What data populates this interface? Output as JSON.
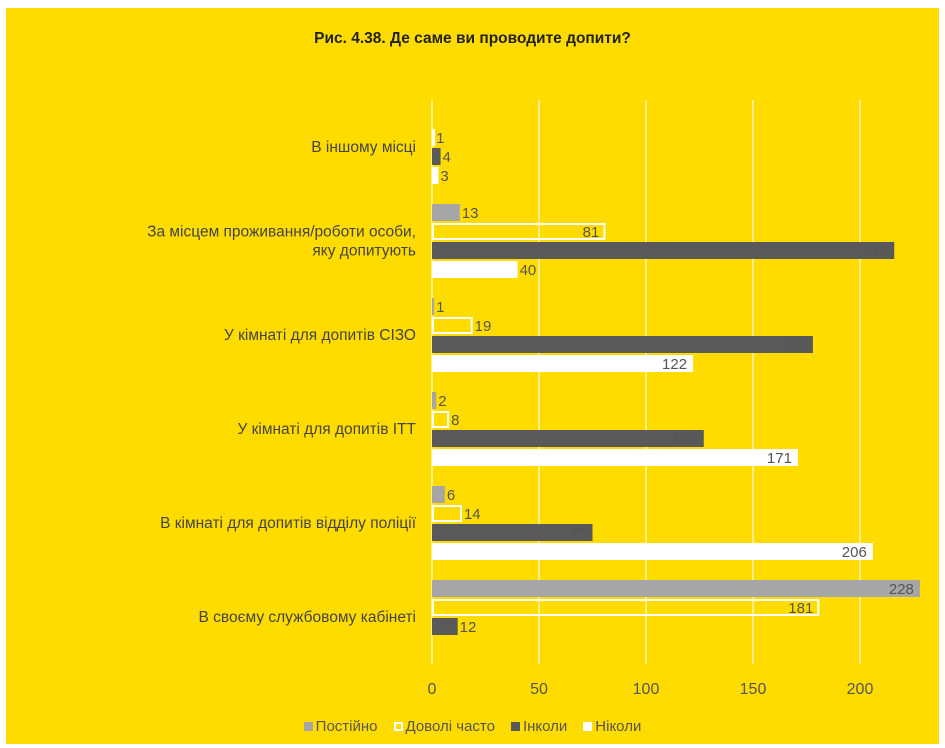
{
  "chart_data": {
    "type": "bar",
    "orientation": "horizontal",
    "title": "Рис. 4.38. Де саме ви проводите допити?",
    "categories": [
      "В своєму службовому кабінеті",
      "В кімнаті для допитів відділу поліції",
      "У кімнаті для допитів ІТТ",
      "У кімнаті для допитів СІЗО",
      "За місцем проживання/роботи особи, яку допитують",
      "В іншому місці"
    ],
    "category_lines": [
      [
        "В своєму службовому кабінеті"
      ],
      [
        "В кімнаті для допитів відділу поліції"
      ],
      [
        "У кімнаті для допитів ІТТ"
      ],
      [
        "У кімнаті для допитів СІЗО"
      ],
      [
        "За місцем проживання/роботи особи,",
        "яку допитують"
      ],
      [
        "В іншому місці"
      ]
    ],
    "series": [
      {
        "name": "Постійно",
        "color": "#A6A6A6",
        "style": "fill",
        "values": [
          228,
          6,
          2,
          1,
          13,
          0
        ]
      },
      {
        "name": "Доволі часто",
        "color": "#FFFFFF",
        "style": "outline",
        "values": [
          181,
          14,
          8,
          19,
          81,
          1
        ]
      },
      {
        "name": "Інколи",
        "color": "#595959",
        "style": "fill",
        "values": [
          12,
          75,
          127,
          178,
          216,
          4
        ]
      },
      {
        "name": "Ніколи",
        "color": "#FFFFFF",
        "style": "fill",
        "values": [
          null,
          206,
          171,
          122,
          40,
          3
        ]
      }
    ],
    "data_labels": [
      [
        "228",
        "6",
        "2",
        "1",
        "13",
        ""
      ],
      [
        "181",
        "14",
        "8",
        "19",
        "81",
        "1"
      ],
      [
        "12",
        "75",
        "127",
        "178",
        "216",
        "4"
      ],
      [
        "",
        "206",
        "171",
        "122",
        "40",
        "3"
      ]
    ],
    "xlim": [
      0,
      230
    ],
    "x_ticks": [
      0,
      50,
      100,
      150,
      200
    ],
    "x_tick_labels": [
      "0",
      "50",
      "100",
      "150",
      "200"
    ],
    "grid": true,
    "legend_position": "bottom"
  }
}
